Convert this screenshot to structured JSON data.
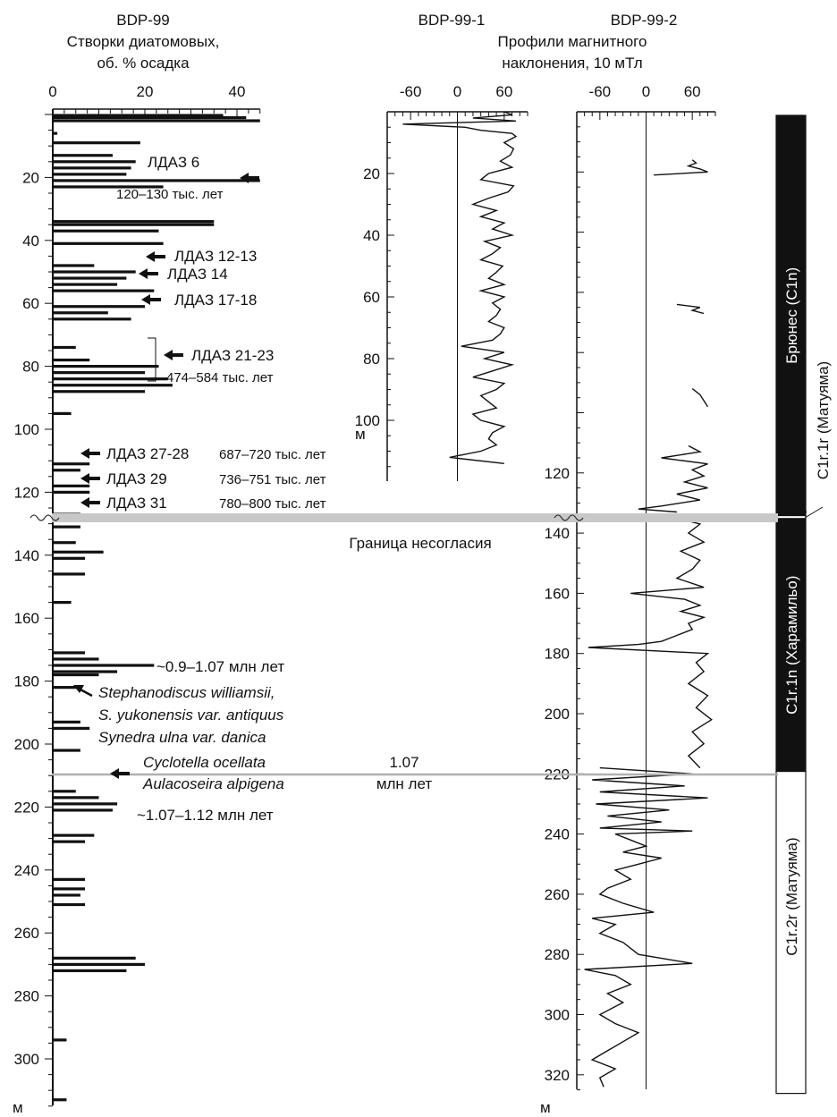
{
  "headers": {
    "diatom": [
      "BDP-99",
      "Створки диатомовых,",
      "об. % осадка"
    ],
    "core1": [
      "BDP-99-1"
    ],
    "core2": [
      "BDP-99-2"
    ],
    "incl": [
      "Профили магнитного",
      "наклонения, 10 мТл"
    ]
  },
  "unconformity_label": "Граница несогласия",
  "chart_data": [
    {
      "type": "bar",
      "name": "diatoms",
      "xlabel": "Створки диатомовых, об. % осадка",
      "ylabel": "м",
      "xlim": [
        0,
        45
      ],
      "ylim": [
        0,
        325
      ],
      "xticks": [
        "0",
        "20",
        "40"
      ],
      "yticks": [
        "20",
        "40",
        "60",
        "80",
        "100",
        "120",
        "140",
        "160",
        "180",
        "200",
        "220",
        "240",
        "260",
        "280",
        "300",
        "320"
      ],
      "y_unit_label": "м",
      "depth": [
        0.3,
        1,
        2,
        6,
        9,
        13,
        15,
        17,
        19,
        21,
        23,
        34,
        35,
        37,
        41,
        48,
        50,
        52,
        54,
        56,
        61,
        63,
        65,
        74,
        78,
        80,
        82,
        84,
        86,
        88,
        95,
        111,
        113,
        118,
        120,
        127,
        129,
        131,
        136,
        139,
        141,
        146,
        155,
        171,
        173,
        175,
        177,
        178,
        182,
        193,
        195,
        202,
        215,
        217,
        219,
        221,
        229,
        231,
        243,
        246,
        248,
        251,
        268,
        270,
        272,
        294,
        313,
        322,
        324
      ],
      "values": [
        37,
        42,
        45,
        1,
        19,
        13,
        18,
        17,
        16,
        45,
        24,
        35,
        35,
        23,
        24,
        9,
        18,
        16,
        14,
        22,
        20,
        12,
        17,
        5,
        8,
        23,
        20,
        25,
        26,
        20,
        4,
        8,
        6,
        8,
        8,
        6,
        6,
        6,
        5,
        11,
        7,
        7,
        4,
        7,
        10,
        22,
        14,
        10,
        6,
        6,
        8,
        6,
        5,
        10,
        14,
        13,
        9,
        7,
        7,
        7,
        6,
        7,
        18,
        20,
        16,
        3,
        3,
        9,
        6
      ],
      "annotations": [
        {
          "depth": 20,
          "label": "ЛДАЗ 6",
          "age": "120–130 тыс. лет"
        },
        {
          "depth": 46,
          "label": "ЛДАЗ 12-13"
        },
        {
          "depth": 53,
          "label": "ЛДАЗ 14"
        },
        {
          "depth": 62,
          "label": "ЛДАЗ 17-18"
        },
        {
          "depth": 81,
          "label": "ЛДАЗ 21-23",
          "age": "474–584 тыс. лет"
        },
        {
          "depth": 112,
          "label": "ЛДАЗ 27-28",
          "age": "687–720 тыс. лет"
        },
        {
          "depth": 120,
          "label": "ЛДАЗ 29",
          "age": "736–751 тыс. лет"
        },
        {
          "depth": 128,
          "label": "ЛДАЗ 31",
          "age": "780–800 тыс. лет"
        }
      ],
      "age_notes": [
        "~0.9–1.07 млн лет",
        "~1.07–1.12 млн лет",
        "1.07",
        "млн лет"
      ],
      "taxa_group1": [
        "Stephanodiscus williamsii,",
        "S. yukonensis var. antiquus",
        "Synedra ulna var. danica"
      ],
      "taxa_group2": [
        "Cyclotella ocellata",
        "Aulacoseira alpigena"
      ]
    },
    {
      "type": "line",
      "name": "BDP-99-1",
      "xlim": [
        -90,
        90
      ],
      "xticks": [
        "-60",
        "0",
        "60"
      ],
      "ylim": [
        0,
        115
      ],
      "yticks": [
        "20",
        "40",
        "60",
        "80",
        "100"
      ],
      "y_unit_label": "м",
      "depth": [
        0,
        1,
        2,
        3,
        4,
        5,
        6,
        7,
        8,
        10,
        12,
        14,
        16,
        18,
        20,
        22,
        24,
        26,
        28,
        30,
        32,
        34,
        36,
        38,
        40,
        42,
        44,
        46,
        48,
        50,
        52,
        54,
        56,
        58,
        60,
        62,
        64,
        66,
        68,
        70,
        72,
        74,
        76,
        78,
        80,
        82,
        84,
        86,
        88,
        90,
        92,
        94,
        96,
        98,
        100,
        102,
        104,
        106,
        108,
        110,
        112,
        114
      ],
      "values": [
        60,
        70,
        20,
        75,
        -70,
        10,
        30,
        70,
        75,
        60,
        72,
        68,
        55,
        70,
        40,
        30,
        72,
        65,
        40,
        20,
        50,
        30,
        60,
        45,
        70,
        35,
        55,
        45,
        30,
        58,
        50,
        40,
        60,
        30,
        60,
        45,
        55,
        50,
        40,
        60,
        55,
        45,
        5,
        60,
        35,
        70,
        45,
        20,
        60,
        50,
        30,
        40,
        50,
        20,
        30,
        60,
        45,
        40,
        50,
        30,
        -10,
        60
      ]
    },
    {
      "type": "line",
      "name": "BDP-99-2",
      "xlim": [
        -90,
        90
      ],
      "xticks": [
        "-60",
        "0",
        "60"
      ],
      "ylim": [
        0,
        325
      ],
      "yticks": [
        "120",
        "140",
        "160",
        "180",
        "200",
        "220",
        "240",
        "260",
        "280",
        "300",
        "320"
      ],
      "y_unit_label": "м",
      "segments": [
        {
          "depth": [
            16,
            17,
            18,
            19,
            20,
            21
          ],
          "values": [
            60,
            65,
            55,
            70,
            80,
            10
          ]
        },
        {
          "depth": [
            64,
            65,
            66,
            67
          ],
          "values": [
            40,
            70,
            60,
            75
          ]
        },
        {
          "depth": [
            92,
            94,
            96,
            98
          ],
          "values": [
            60,
            70,
            75,
            80
          ]
        },
        {
          "depth": [
            111,
            113,
            115,
            117,
            119,
            121,
            123,
            125,
            127,
            129,
            131,
            132,
            133
          ],
          "values": [
            55,
            70,
            20,
            80,
            60,
            75,
            50,
            80,
            40,
            70,
            20,
            -10,
            40
          ]
        },
        {
          "depth": [
            135,
            137,
            140,
            143,
            146,
            149,
            152,
            155,
            158,
            160,
            162,
            164,
            166,
            168,
            170,
            172,
            174,
            176,
            177,
            178,
            180,
            183,
            186,
            190,
            194,
            198,
            202,
            206,
            210,
            214,
            218
          ],
          "values": [
            40,
            70,
            55,
            75,
            45,
            70,
            60,
            40,
            75,
            -20,
            50,
            70,
            45,
            75,
            55,
            60,
            40,
            20,
            -10,
            -75,
            80,
            65,
            75,
            55,
            80,
            65,
            85,
            60,
            75,
            55,
            70
          ]
        },
        {
          "depth": [
            218,
            220,
            222,
            224,
            226,
            228,
            230,
            232,
            234,
            236,
            238,
            239,
            240,
            242,
            244,
            246,
            248,
            250,
            252,
            255,
            258,
            260,
            263,
            266,
            268,
            270,
            273,
            276,
            280,
            283,
            285,
            287,
            290,
            293,
            296,
            300,
            303,
            306,
            309,
            312,
            315,
            318,
            321,
            324
          ],
          "values": [
            -60,
            60,
            -70,
            50,
            -60,
            80,
            -65,
            30,
            -50,
            20,
            -60,
            60,
            -40,
            -20,
            0,
            -30,
            20,
            -10,
            -40,
            -20,
            -50,
            -60,
            -30,
            10,
            -70,
            -40,
            -60,
            -30,
            -10,
            60,
            -80,
            -40,
            -20,
            -50,
            -30,
            -60,
            -40,
            -10,
            -30,
            -50,
            -70,
            -40,
            -60,
            -55
          ]
        }
      ]
    },
    {
      "type": "table",
      "name": "polarity",
      "items": [
        {
          "label": "Брюнес (C1n)",
          "from": 0,
          "to": 133,
          "color": "#111111"
        },
        {
          "label": "C1r.1r (Матуяма)",
          "from": 133,
          "to": 134,
          "color": "#ffffff"
        },
        {
          "label": "C1r.1n (Харамильо)",
          "from": 134,
          "to": 218,
          "color": "#111111"
        },
        {
          "label": "C1r.2r (Матуяма)",
          "from": 218,
          "to": 325,
          "color": "#ffffff"
        }
      ]
    }
  ],
  "boundaries": {
    "unconformity_depth": 133.5,
    "age_line_depth": 218
  }
}
